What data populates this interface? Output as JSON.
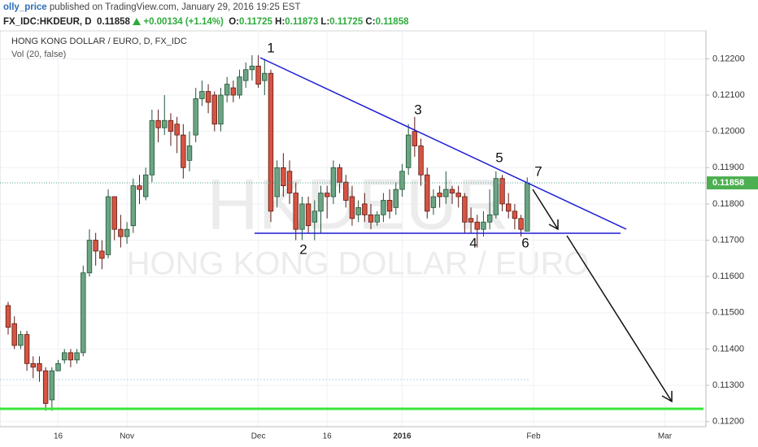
{
  "header": {
    "user": "olly_price",
    "published": "published on TradingView.com, January 29, 2016 19:25 EST",
    "symbol": "FX_IDC:HKDEUR, D",
    "price": "0.11858",
    "change": "+0.00134 (+1.14%)",
    "ohlc": [
      {
        "label": "O:",
        "value": "0.11725"
      },
      {
        "label": "H:",
        "value": "0.11873"
      },
      {
        "label": "L:",
        "value": "0.11725"
      },
      {
        "label": "C:",
        "value": "0.11858"
      }
    ]
  },
  "chart_data": {
    "type": "candlestick",
    "title": "HONG KONG DOLLAR / EURO, D, FX_IDC",
    "subtitle": "Vol (20, false)",
    "watermark": [
      "HKDEUR",
      "HONG KONG DOLLAR / EURO"
    ],
    "annotations": [
      "1",
      "2",
      "3",
      "4",
      "5",
      "6",
      "7"
    ],
    "up_color": "#6ba583",
    "down_color": "#d75442",
    "grid": true,
    "ylim": [
      0.11186,
      0.12277
    ],
    "yticks": [
      {
        "value": 0.112,
        "label": "0.11200"
      },
      {
        "value": 0.113,
        "label": "0.11300"
      },
      {
        "value": 0.114,
        "label": "0.11400"
      },
      {
        "value": 0.115,
        "label": "0.11500"
      },
      {
        "value": 0.116,
        "label": "0.11600"
      },
      {
        "value": 0.117,
        "label": "0.11700"
      },
      {
        "value": 0.118,
        "label": "0.11800"
      },
      {
        "value": 0.119,
        "label": "0.11900"
      },
      {
        "value": 0.12,
        "label": "0.12000"
      },
      {
        "value": 0.121,
        "label": "0.12100"
      },
      {
        "value": 0.122,
        "label": "0.12200"
      }
    ],
    "last_price": 0.11858,
    "categories": [
      null,
      null,
      null,
      null,
      null,
      null,
      null,
      null,
      "16",
      null,
      null,
      null,
      null,
      null,
      null,
      null,
      null,
      null,
      null,
      "Nov",
      null,
      null,
      null,
      null,
      null,
      null,
      null,
      null,
      null,
      null,
      null,
      null,
      null,
      null,
      null,
      null,
      null,
      null,
      null,
      null,
      "Dec",
      null,
      null,
      null,
      null,
      null,
      null,
      null,
      null,
      null,
      null,
      "16",
      null,
      null,
      null,
      null,
      null,
      null,
      null,
      null,
      null,
      null,
      null,
      "2016",
      null,
      null,
      null,
      null,
      null,
      null,
      null,
      null,
      null,
      null,
      null,
      null,
      null,
      null,
      null,
      null,
      null,
      null,
      null,
      null,
      "Feb",
      null,
      null,
      null,
      null,
      null,
      null,
      null,
      null,
      null,
      null,
      null,
      null,
      null,
      null,
      null,
      null,
      null,
      null,
      null,
      null,
      "Mar",
      null,
      null,
      null,
      null,
      null,
      null
    ],
    "open": [
      0.1152,
      0.1147,
      0.1141,
      0.1144,
      0.1136,
      0.1136,
      0.1134,
      0.1126,
      0.1134,
      0.1137,
      0.1139,
      0.1137,
      0.1139,
      0.1161,
      0.117,
      0.1167,
      0.1166,
      0.1182,
      0.1173,
      0.1171,
      0.1174,
      0.1185,
      0.1182,
      0.1188,
      0.1203,
      0.1201,
      0.1203,
      0.1202,
      0.1199,
      0.1192,
      0.1199,
      0.1209,
      0.1211,
      0.121,
      0.1202,
      0.121,
      0.1212,
      0.121,
      0.1214,
      0.1217,
      0.1218,
      0.1214,
      0.1216,
      0.1182,
      0.119,
      0.1189,
      0.1183,
      0.1173,
      0.118,
      0.1175,
      0.1178,
      0.1183,
      0.1182,
      0.119,
      0.1186,
      0.1182,
      0.1177,
      0.118,
      0.1177,
      0.1175,
      0.1177,
      0.1181,
      0.1179,
      0.1184,
      0.119,
      0.12,
      0.1196,
      0.1188,
      0.1179,
      0.1183,
      0.1182,
      0.1184,
      0.1183,
      0.1182,
      0.1176,
      0.1175,
      0.1173,
      0.1175,
      0.1177,
      0.1187,
      0.118,
      0.1178,
      0.1176,
      0.11725,
      null,
      null,
      null,
      null,
      null,
      null,
      null,
      null,
      null,
      null,
      null,
      null,
      null,
      null,
      null,
      null,
      null,
      null,
      null,
      null,
      null,
      null,
      null,
      null,
      null,
      null,
      null,
      null
    ],
    "high": [
      0.1153,
      0.1149,
      0.1145,
      0.1145,
      0.1138,
      0.1138,
      0.1135,
      0.1135,
      0.1137,
      0.114,
      0.114,
      0.114,
      0.1163,
      0.1173,
      0.1172,
      0.117,
      0.1184,
      0.1182,
      0.1177,
      0.1175,
      0.1187,
      0.1188,
      0.119,
      0.1206,
      0.1206,
      0.121,
      0.1205,
      0.1204,
      0.1202,
      0.12,
      0.1212,
      0.1214,
      0.1213,
      0.1211,
      0.1212,
      0.1215,
      0.1214,
      0.1217,
      0.1219,
      0.1221,
      0.1221,
      0.122,
      0.1217,
      0.1192,
      0.1194,
      0.1192,
      0.1186,
      0.1182,
      0.1182,
      0.1181,
      0.1185,
      0.1185,
      0.1192,
      0.1191,
      0.1188,
      0.1185,
      0.1181,
      0.1183,
      0.118,
      0.1178,
      0.1183,
      0.1184,
      0.1186,
      0.1191,
      0.1202,
      0.1204,
      0.1198,
      0.119,
      0.1184,
      0.1185,
      0.1189,
      0.1185,
      0.1185,
      0.1183,
      0.1179,
      0.1177,
      0.1178,
      0.1184,
      0.1189,
      0.1188,
      0.1183,
      0.118,
      0.1177,
      0.11873,
      null,
      null,
      null,
      null,
      null,
      null,
      null,
      null,
      null,
      null,
      null,
      null,
      null,
      null,
      null,
      null,
      null,
      null,
      null,
      null,
      null,
      null,
      null,
      null,
      null,
      null,
      null,
      null
    ],
    "low": [
      0.1144,
      0.114,
      0.114,
      0.1134,
      0.1132,
      0.1131,
      0.1123,
      0.1123,
      0.1134,
      0.1136,
      0.1135,
      0.1136,
      0.1138,
      0.116,
      0.1163,
      0.1162,
      0.1165,
      0.117,
      0.1168,
      0.1169,
      0.1172,
      0.118,
      0.1181,
      0.1186,
      0.1197,
      0.1199,
      0.1196,
      0.1194,
      0.1187,
      0.1189,
      0.1197,
      0.1207,
      0.1205,
      0.12,
      0.12,
      0.1208,
      0.1208,
      0.1209,
      0.1212,
      0.1214,
      0.1212,
      0.121,
      0.1175,
      0.1179,
      0.1182,
      0.118,
      0.117,
      0.117,
      0.1172,
      0.117,
      0.1172,
      0.1176,
      0.118,
      0.1183,
      0.1179,
      0.1174,
      0.1175,
      0.1175,
      0.1173,
      0.1174,
      0.1175,
      0.1176,
      0.1177,
      0.1182,
      0.1188,
      0.1193,
      0.1185,
      0.1176,
      0.1177,
      0.1179,
      0.118,
      0.118,
      0.1179,
      0.1172,
      0.1172,
      0.1168,
      0.1171,
      0.1173,
      0.1176,
      0.1178,
      0.1176,
      0.1173,
      0.1171,
      0.11725,
      null,
      null,
      null,
      null,
      null,
      null,
      null,
      null,
      null,
      null,
      null,
      null,
      null,
      null,
      null,
      null,
      null,
      null,
      null,
      null,
      null,
      null,
      null,
      null,
      null,
      null,
      null,
      null
    ],
    "close": [
      0.1146,
      0.1141,
      0.1144,
      0.1136,
      0.1135,
      0.1134,
      0.1125,
      0.1134,
      0.1136,
      0.1139,
      0.1137,
      0.1139,
      0.1161,
      0.117,
      0.1167,
      0.1165,
      0.1182,
      0.1173,
      0.1171,
      0.1173,
      0.1185,
      0.1184,
      0.1188,
      0.1203,
      0.1201,
      0.1203,
      0.12,
      0.1199,
      0.119,
      0.1196,
      0.1209,
      0.1211,
      0.1208,
      0.1202,
      0.121,
      0.1213,
      0.121,
      0.1215,
      0.1217,
      0.1218,
      0.1213,
      0.1216,
      0.1178,
      0.119,
      0.1185,
      0.1183,
      0.1173,
      0.118,
      0.1174,
      0.1178,
      0.1183,
      0.1182,
      0.119,
      0.1186,
      0.1181,
      0.1176,
      0.1179,
      0.1177,
      0.1175,
      0.1177,
      0.1181,
      0.1178,
      0.1184,
      0.1189,
      0.1199,
      0.1196,
      0.1188,
      0.1178,
      0.1182,
      0.1182,
      0.1184,
      0.1183,
      0.1182,
      0.1175,
      0.1175,
      0.1173,
      0.1175,
      0.1177,
      0.1187,
      0.118,
      0.1178,
      0.1176,
      0.1173,
      0.11858,
      null,
      null,
      null,
      null,
      null,
      null,
      null,
      null,
      null,
      null,
      null,
      null,
      null,
      null,
      null,
      null,
      null,
      null,
      null,
      null,
      null,
      null,
      null,
      null,
      null,
      null,
      null,
      null
    ]
  }
}
